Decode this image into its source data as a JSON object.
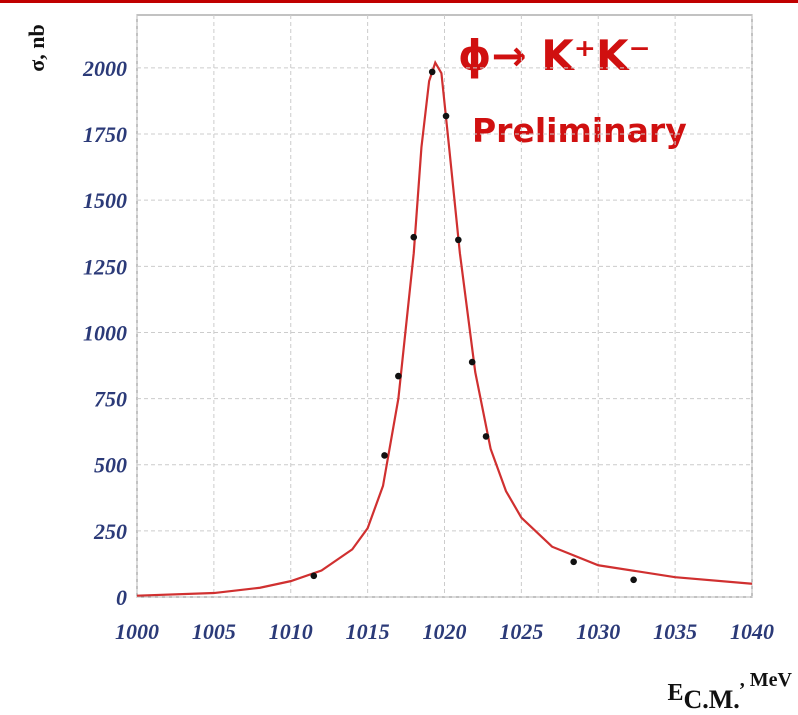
{
  "chart_data": {
    "type": "line",
    "y_label": "σ, nb",
    "x_label": {
      "main": "E",
      "sub": "C.M.",
      "unit": ", MeV"
    },
    "annotations": [
      "ϕ→ K⁺K⁻",
      "Preliminary"
    ],
    "xlim": [
      1000,
      1040
    ],
    "ylim": [
      0,
      2200
    ],
    "xticks": [
      1000,
      1005,
      1010,
      1015,
      1020,
      1025,
      1030,
      1035,
      1040
    ],
    "yticks": [
      0,
      250,
      500,
      750,
      1000,
      1250,
      1500,
      1750,
      2000
    ],
    "grid": true,
    "series": [
      {
        "mode": "line",
        "color": "#d03030",
        "x": [
          1000,
          1005,
          1008,
          1010,
          1012,
          1014,
          1015,
          1016,
          1017,
          1018,
          1018.5,
          1019,
          1019.4,
          1019.8,
          1020.3,
          1021,
          1022,
          1023,
          1024,
          1025,
          1027,
          1030,
          1035,
          1040
        ],
        "values": [
          5,
          15,
          35,
          60,
          100,
          180,
          260,
          420,
          750,
          1300,
          1700,
          1950,
          2020,
          1980,
          1700,
          1300,
          850,
          560,
          400,
          300,
          190,
          120,
          75,
          50
        ]
      },
      {
        "mode": "markers",
        "color": "#111111",
        "x": [
          1011.5,
          1016.1,
          1017.0,
          1018.0,
          1019.2,
          1020.1,
          1020.9,
          1021.8,
          1022.7,
          1028.4,
          1032.3
        ],
        "values": [
          80,
          535,
          835,
          1360,
          1985,
          1818,
          1350,
          888,
          607,
          133,
          65
        ]
      }
    ]
  }
}
